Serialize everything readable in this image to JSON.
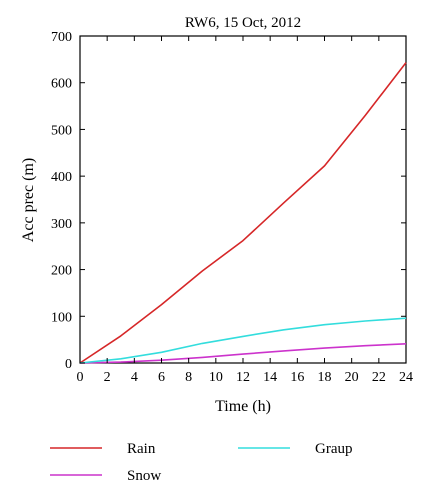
{
  "chart_data": {
    "type": "line",
    "title": "RW6, 15 Oct, 2012",
    "xlabel": "Time (h)",
    "ylabel": "Acc prec (m)",
    "xlim": [
      0,
      24
    ],
    "ylim": [
      0,
      700
    ],
    "xticks": [
      0,
      2,
      4,
      6,
      8,
      10,
      12,
      14,
      16,
      18,
      20,
      22,
      24
    ],
    "yticks": [
      0,
      100,
      200,
      300,
      400,
      500,
      600,
      700
    ],
    "grid": false,
    "legend_position": "bottom",
    "series": [
      {
        "name": "Rain",
        "color": "#d62728",
        "x": [
          0,
          3,
          6,
          9,
          12,
          15,
          18,
          21,
          24
        ],
        "y": [
          0,
          58,
          125,
          197,
          262,
          343,
          422,
          530,
          643
        ]
      },
      {
        "name": "Snow",
        "color": "#cc33cc",
        "x": [
          0,
          3,
          6,
          9,
          12,
          15,
          18,
          21,
          24
        ],
        "y": [
          0,
          2,
          6,
          12,
          19,
          26,
          32,
          37,
          41
        ]
      },
      {
        "name": "Graup",
        "color": "#33dddd",
        "x": [
          0,
          3,
          6,
          9,
          12,
          15,
          18,
          21,
          24
        ],
        "y": [
          0,
          9,
          23,
          42,
          57,
          71,
          82,
          90,
          96
        ]
      }
    ]
  }
}
